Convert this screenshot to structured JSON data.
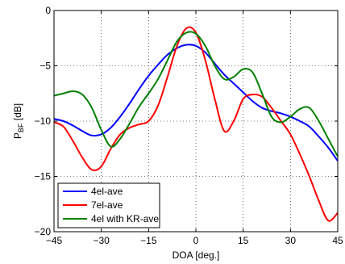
{
  "chart_data": {
    "type": "line",
    "xlabel": "DOA [deg.]",
    "ylabel_main": "P",
    "ylabel_sub": "BF",
    "ylabel_unit": " [dB]",
    "xlim": [
      -45,
      45
    ],
    "ylim": [
      -20,
      0
    ],
    "xticks": [
      -45,
      -30,
      -15,
      0,
      15,
      30,
      45
    ],
    "yticks": [
      0,
      -5,
      -10,
      -15,
      -20
    ],
    "grid": true,
    "legend_position": "bottom-left",
    "series": [
      {
        "name": "4el-ave",
        "color": "#0000ff",
        "x": [
          -45,
          -42,
          -39,
          -36,
          -33,
          -30,
          -27,
          -24,
          -21,
          -18,
          -15,
          -12,
          -9,
          -6,
          -3,
          0,
          3,
          6,
          9,
          12,
          15,
          18,
          21,
          24,
          27,
          30,
          33,
          36,
          39,
          42,
          45
        ],
        "y": [
          -9.8,
          -10.0,
          -10.4,
          -10.9,
          -11.3,
          -11.2,
          -10.6,
          -9.6,
          -8.4,
          -7.1,
          -5.9,
          -4.9,
          -4.0,
          -3.4,
          -3.1,
          -3.2,
          -3.8,
          -4.8,
          -5.8,
          -6.6,
          -7.4,
          -8.2,
          -8.8,
          -9.1,
          -9.3,
          -9.6,
          -10.0,
          -10.5,
          -11.4,
          -12.4,
          -13.6
        ]
      },
      {
        "name": "7el-ave",
        "color": "#ff0000",
        "x": [
          -45,
          -42,
          -39,
          -36,
          -33,
          -30,
          -27,
          -24,
          -21,
          -18,
          -15,
          -12,
          -9,
          -6,
          -3,
          0,
          3,
          6,
          9,
          12,
          15,
          18,
          21,
          24,
          27,
          30,
          33,
          36,
          39,
          42,
          45
        ],
        "y": [
          -10.1,
          -10.5,
          -11.8,
          -13.3,
          -14.4,
          -14.1,
          -12.5,
          -11.2,
          -10.6,
          -10.3,
          -10.0,
          -8.6,
          -6.0,
          -3.2,
          -1.6,
          -2.0,
          -4.5,
          -8.0,
          -10.9,
          -10.0,
          -8.0,
          -7.6,
          -7.8,
          -8.8,
          -10.0,
          -11.2,
          -13.0,
          -15.0,
          -17.2,
          -19.0,
          -18.3
        ]
      },
      {
        "name": "4el with KR-ave",
        "color": "#008000",
        "x": [
          -45,
          -42,
          -39,
          -36,
          -33,
          -30,
          -27,
          -24,
          -21,
          -18,
          -15,
          -12,
          -9,
          -6,
          -3,
          0,
          3,
          6,
          9,
          12,
          15,
          18,
          21,
          24,
          27,
          30,
          33,
          36,
          39,
          42,
          45
        ],
        "y": [
          -7.7,
          -7.5,
          -7.3,
          -7.6,
          -8.8,
          -10.8,
          -12.3,
          -11.6,
          -10.2,
          -8.7,
          -7.5,
          -6.2,
          -4.5,
          -2.8,
          -2.0,
          -2.1,
          -3.2,
          -5.0,
          -6.2,
          -6.0,
          -5.3,
          -5.6,
          -7.5,
          -9.6,
          -10.1,
          -9.6,
          -8.9,
          -8.8,
          -10.0,
          -11.6,
          -13.2
        ]
      }
    ]
  }
}
